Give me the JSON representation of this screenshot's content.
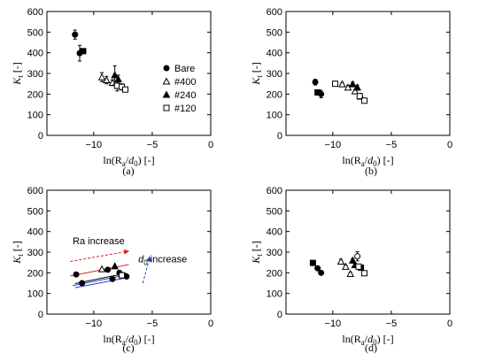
{
  "chart_data": [
    {
      "panel": "(a)",
      "type": "scatter",
      "xlabel": "ln(R_a/d_0) [-]",
      "ylabel": "K_t [-]",
      "xlim": [
        -14,
        0
      ],
      "ylim": [
        0,
        600
      ],
      "xticks": [
        -10,
        -5,
        0
      ],
      "yticks": [
        0,
        100,
        200,
        300,
        400,
        500,
        600
      ],
      "legend_position": "right",
      "series": [
        {
          "name": "Bare",
          "marker": "circle-filled",
          "x": [
            -11.6,
            -11.2
          ],
          "y": [
            488,
            398
          ],
          "yerr": [
            22,
            38
          ]
        },
        {
          "name": "#400",
          "marker": "triangle-open",
          "x": [
            -9.3,
            -8.9,
            -8.4
          ],
          "y": [
            282,
            268,
            255
          ],
          "yerr": [
            22,
            18,
            14
          ]
        },
        {
          "name": "#240",
          "marker": "triangle-filled",
          "x": [
            -8.2,
            -7.9
          ],
          "y": [
            292,
            272
          ],
          "yerr": [
            45,
            20
          ]
        },
        {
          "name": "#120",
          "marker": "square-open",
          "x": [
            -8.0,
            -7.6,
            -7.3
          ],
          "y": [
            240,
            235,
            222
          ],
          "yerr": [
            25,
            15,
            10
          ]
        }
      ],
      "extra_points": [
        {
          "marker": "square-filled",
          "x": -10.9,
          "y": 408
        }
      ]
    },
    {
      "panel": "(b)",
      "type": "scatter",
      "xlabel": "ln(R_a/d_0) [-]",
      "ylabel": "K_t [-]",
      "xlim": [
        -14,
        0
      ],
      "ylim": [
        0,
        600
      ],
      "xticks": [
        -10,
        -5,
        0
      ],
      "yticks": [
        0,
        100,
        200,
        300,
        400,
        500,
        600
      ],
      "series": [
        {
          "marker": "circle-filled",
          "x": [
            -11.5,
            -11.0
          ],
          "y": [
            258,
            200
          ],
          "yerr": [
            14,
            18
          ]
        },
        {
          "marker": "square-filled",
          "x": [
            -11.3
          ],
          "y": [
            208
          ],
          "yerr": [
            12
          ]
        },
        {
          "marker": "triangle-open",
          "x": [
            -9.2,
            -8.7,
            -8.1,
            -7.6
          ],
          "y": [
            248,
            232,
            214,
            188
          ],
          "yerr": [
            8,
            10,
            8,
            10
          ]
        },
        {
          "marker": "triangle-filled",
          "x": [
            -8.3,
            -7.9
          ],
          "y": [
            248,
            232
          ],
          "yerr": [
            10,
            12
          ]
        },
        {
          "marker": "square-open",
          "x": [
            -9.8,
            -7.7,
            -7.3
          ],
          "y": [
            250,
            190,
            168
          ],
          "yerr": [
            8,
            10,
            10
          ]
        }
      ]
    },
    {
      "panel": "(c)",
      "type": "scatter",
      "xlabel": "ln(R_a/d_0) [-]",
      "ylabel": "K_t [-]",
      "xlim": [
        -14,
        0
      ],
      "ylim": [
        0,
        600
      ],
      "xticks": [
        -10,
        -5,
        0
      ],
      "yticks": [
        0,
        100,
        200,
        300,
        400,
        500,
        600
      ],
      "series": [
        {
          "marker": "circle-filled",
          "x": [
            -11.5,
            -11.0,
            -8.8,
            -8.4,
            -7.8,
            -7.2
          ],
          "y": [
            192,
            150,
            215,
            170,
            200,
            182
          ]
        },
        {
          "marker": "triangle-open",
          "x": [
            -9.3
          ],
          "y": [
            218
          ]
        },
        {
          "marker": "triangle-filled",
          "x": [
            -8.2
          ],
          "y": [
            232
          ]
        },
        {
          "marker": "square-open",
          "x": [
            -7.6
          ],
          "y": [
            188
          ]
        }
      ],
      "trend_lines": [
        {
          "color": "#e02020",
          "x": [
            -12.0,
            -7.0
          ],
          "y": [
            185,
            240
          ]
        },
        {
          "color": "#000000",
          "x": [
            -11.6,
            -7.2
          ],
          "y": [
            148,
            198
          ]
        },
        {
          "color": "#2040c0",
          "x": [
            -11.8,
            -7.0
          ],
          "y": [
            138,
            192
          ]
        },
        {
          "color": "#2040c0",
          "x": [
            -11.6,
            -7.0
          ],
          "y": [
            128,
            178
          ]
        }
      ],
      "annotations": [
        {
          "text": "Ra increase",
          "x": -11.8,
          "y": 338,
          "arrow": {
            "color": "#e02020",
            "style": "dashed",
            "from": [
              -12.0,
              255
            ],
            "to": [
              -7.0,
              305
            ]
          }
        },
        {
          "text": "d0 increase",
          "x": -6.2,
          "y": 250,
          "arrow": {
            "color": "#2040c0",
            "style": "dashed",
            "from": [
              -5.8,
              150
            ],
            "to": [
              -5.2,
              278
            ]
          }
        }
      ]
    },
    {
      "panel": "(d)",
      "type": "scatter",
      "xlabel": "ln(R_a/d_0) [-]",
      "ylabel": "K_t [-]",
      "xlim": [
        -14,
        0
      ],
      "ylim": [
        0,
        600
      ],
      "xticks": [
        -10,
        -5,
        0
      ],
      "yticks": [
        0,
        100,
        200,
        300,
        400,
        500,
        600
      ],
      "series": [
        {
          "marker": "square-filled",
          "x": [
            -11.7
          ],
          "y": [
            248
          ],
          "yerr": [
            8
          ]
        },
        {
          "marker": "circle-filled",
          "x": [
            -11.3,
            -11.0
          ],
          "y": [
            222,
            200
          ],
          "yerr": [
            8,
            8
          ]
        },
        {
          "marker": "triangle-open",
          "x": [
            -9.3,
            -8.9,
            -8.5
          ],
          "y": [
            255,
            230,
            195
          ],
          "yerr": [
            10,
            8,
            8
          ]
        },
        {
          "marker": "triangle-filled",
          "x": [
            -8.3,
            -8.1
          ],
          "y": [
            260,
            238
          ],
          "yerr": [
            10,
            8
          ]
        },
        {
          "marker": "circle-open",
          "x": [
            -7.9
          ],
          "y": [
            280
          ],
          "yerr": [
            22
          ]
        },
        {
          "marker": "square-filled",
          "x": [
            -7.6
          ],
          "y": [
            225
          ],
          "yerr": [
            10
          ]
        },
        {
          "marker": "square-open",
          "x": [
            -7.8,
            -7.3
          ],
          "y": [
            230,
            198
          ],
          "yerr": [
            10,
            10
          ]
        }
      ]
    }
  ]
}
